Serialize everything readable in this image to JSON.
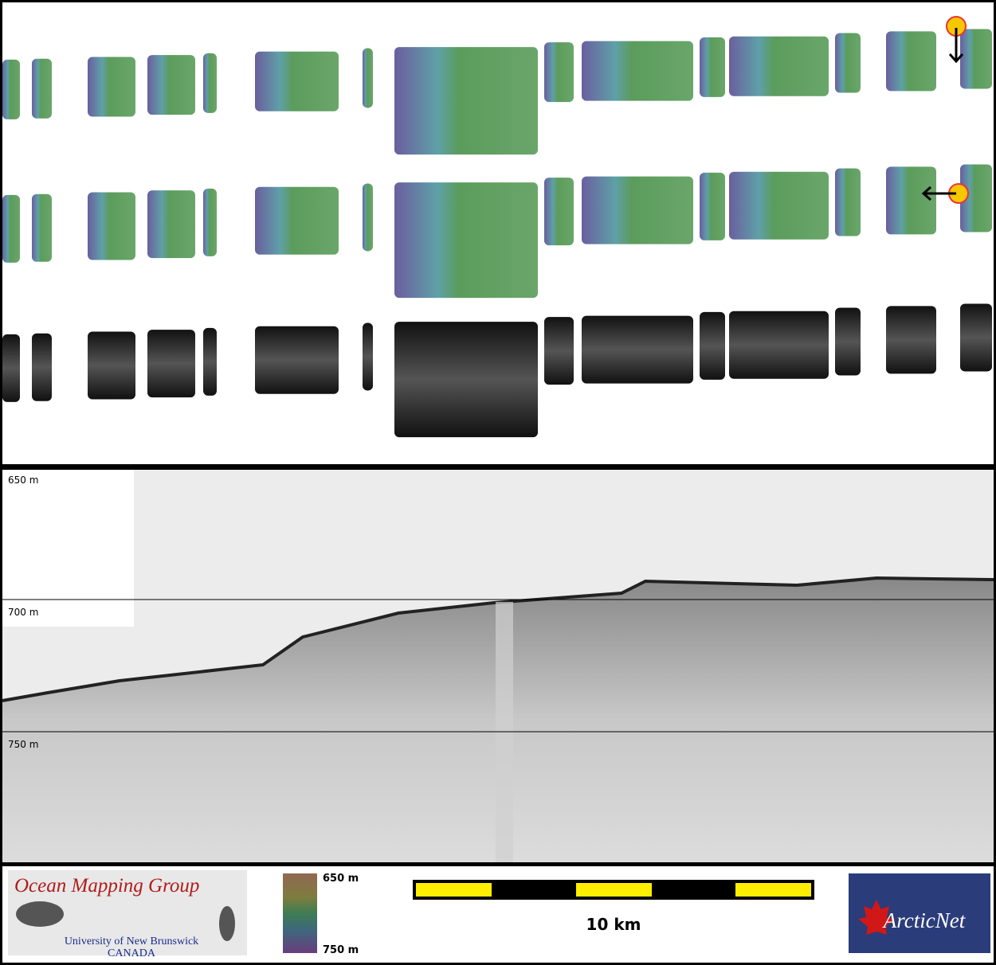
{
  "profile": {
    "depth_labels": [
      "650 m",
      "700 m",
      "750 m"
    ]
  },
  "logos": {
    "omg_title": "Ocean Mapping Group",
    "omg_university": "University of New Brunswick",
    "omg_country": "CANADA",
    "arcticnet": "ArcticNet"
  },
  "colorbar": {
    "top_label": "650 m",
    "bottom_label": "750 m"
  },
  "scalebar": {
    "label": "10 km"
  }
}
